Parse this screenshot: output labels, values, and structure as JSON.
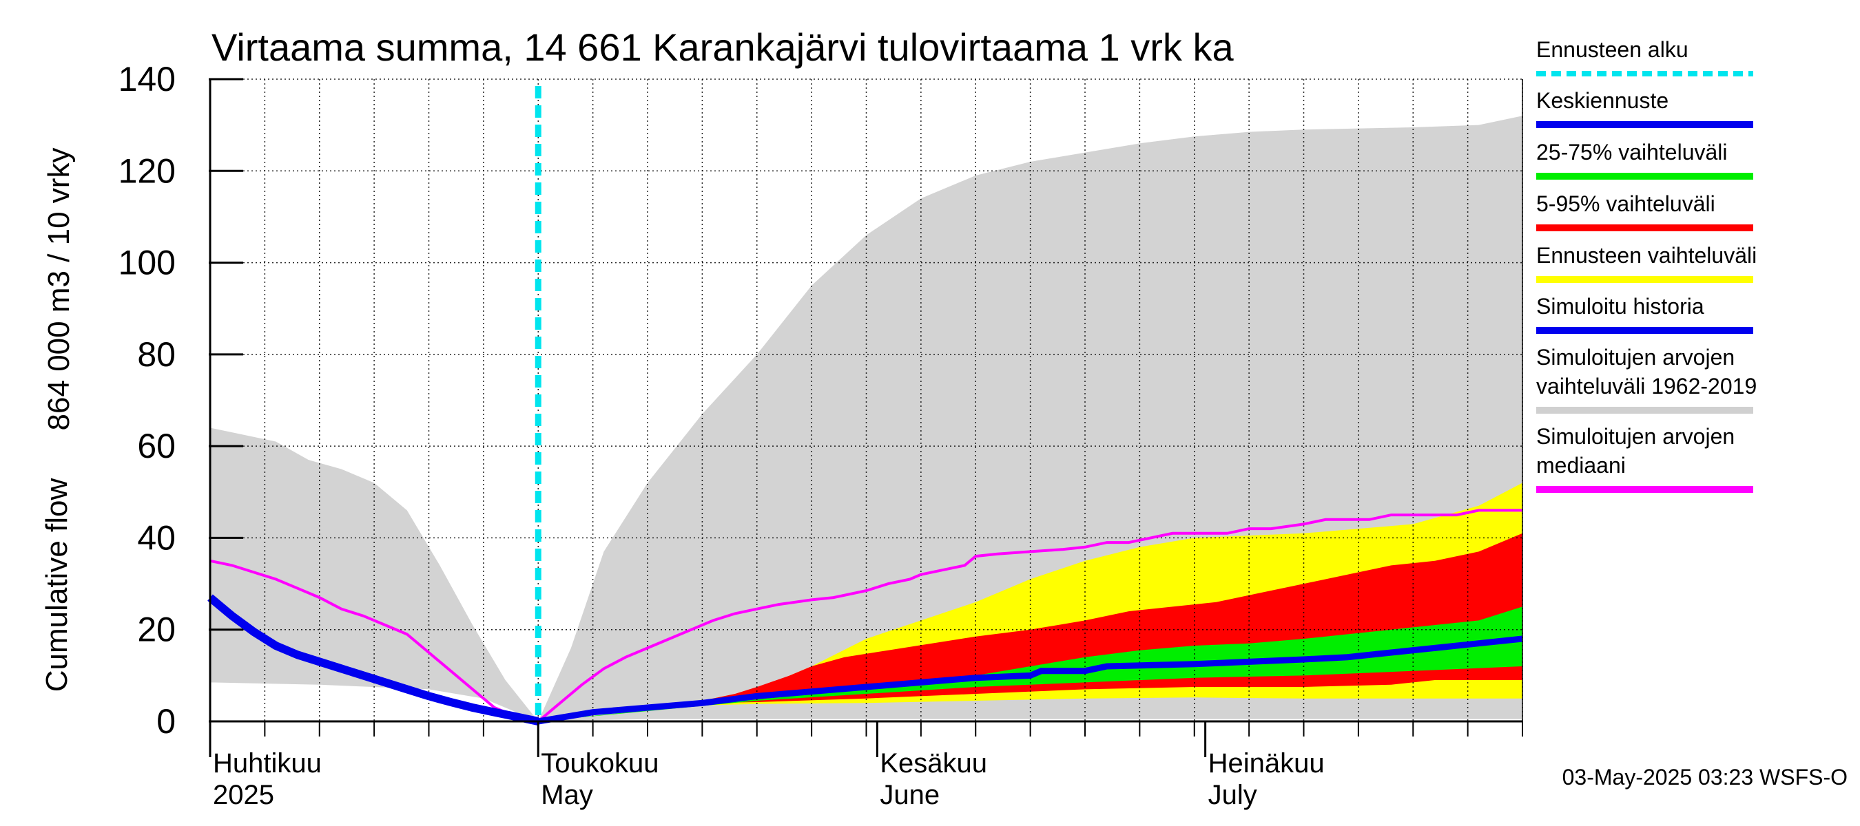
{
  "chart_data": {
    "type": "area",
    "title": "Virtaama summa, 14 661 Karankajärvi tulovirtaama 1 vrk ka",
    "ylabel_line1": "864 000 m3 / 10 vrky",
    "ylabel_line2": "Cumulative flow",
    "ylim": [
      0,
      140
    ],
    "yticks": [
      0,
      20,
      40,
      60,
      80,
      100,
      120,
      140
    ],
    "x_domain_days": [
      0,
      120
    ],
    "x_origin_date": "2025-03-29",
    "forecast_start_day": 30,
    "months": [
      {
        "day": 0,
        "fi": "Huhtikuu",
        "en": "2025"
      },
      {
        "day": 30,
        "fi": "Toukokuu",
        "en": "May"
      },
      {
        "day": 61,
        "fi": "Kesäkuu",
        "en": "June"
      },
      {
        "day": 91,
        "fi": "Heinäkuu",
        "en": "July"
      }
    ],
    "legend": [
      {
        "label": "Ennusteen alku",
        "color": "#00e5ee",
        "style": "dashed"
      },
      {
        "label": "Keskiennuste",
        "color": "#0000ee",
        "style": "solid"
      },
      {
        "label": "25-75% vaihteluväli",
        "color": "#00ee00",
        "style": "solid"
      },
      {
        "label": "5-95% vaihteluväli",
        "color": "#ff0000",
        "style": "solid"
      },
      {
        "label": "Ennusteen vaihteluväli",
        "color": "#ffff00",
        "style": "solid"
      },
      {
        "label": "Simuloitu historia",
        "color": "#0000ee",
        "style": "solid"
      },
      {
        "label": "Simuloitujen arvojen\nvaihteluväli 1962-2019",
        "color": "#d0d0d0",
        "style": "solid"
      },
      {
        "label": "Simuloitujen arvojen\nmediaani",
        "color": "#ff00ff",
        "style": "solid"
      }
    ],
    "series": {
      "hist_range_upper": [
        [
          0,
          64
        ],
        [
          2,
          63
        ],
        [
          6,
          61
        ],
        [
          9,
          57
        ],
        [
          12,
          55
        ],
        [
          15,
          52
        ],
        [
          18,
          46
        ],
        [
          21,
          34
        ],
        [
          24,
          21
        ],
        [
          27,
          9
        ],
        [
          30,
          0
        ],
        [
          33,
          16
        ],
        [
          36,
          37
        ],
        [
          40,
          52
        ],
        [
          45,
          67
        ],
        [
          50,
          80
        ],
        [
          55,
          95
        ],
        [
          60,
          106
        ],
        [
          65,
          114
        ],
        [
          70,
          119
        ],
        [
          75,
          122
        ],
        [
          80,
          124
        ],
        [
          85,
          126
        ],
        [
          90,
          127.5
        ],
        [
          95,
          128.5
        ],
        [
          100,
          129
        ],
        [
          110,
          129.5
        ],
        [
          116,
          130
        ],
        [
          120,
          132
        ]
      ],
      "hist_range_lower": [
        [
          0,
          8.5
        ],
        [
          10,
          8
        ],
        [
          20,
          7
        ],
        [
          25,
          5
        ],
        [
          30,
          0
        ],
        [
          33,
          0.2
        ],
        [
          40,
          0.5
        ],
        [
          50,
          0.5
        ],
        [
          60,
          0.5
        ],
        [
          120,
          0.5
        ]
      ],
      "ens_upper": [
        [
          30,
          0
        ],
        [
          40,
          3
        ],
        [
          45,
          4.5
        ],
        [
          50,
          7
        ],
        [
          55,
          12
        ],
        [
          60,
          18
        ],
        [
          65,
          22
        ],
        [
          70,
          26
        ],
        [
          75,
          31
        ],
        [
          80,
          35
        ],
        [
          85,
          38
        ],
        [
          90,
          40
        ],
        [
          100,
          41
        ],
        [
          110,
          43
        ],
        [
          116,
          47
        ],
        [
          120,
          52
        ]
      ],
      "ens_lower": [
        [
          30,
          0
        ],
        [
          40,
          3
        ],
        [
          45,
          3.5
        ],
        [
          50,
          3.8
        ],
        [
          60,
          4
        ],
        [
          70,
          4.5
        ],
        [
          80,
          5
        ],
        [
          90,
          5.2
        ],
        [
          100,
          5
        ],
        [
          110,
          5
        ],
        [
          120,
          5
        ]
      ],
      "p95": [
        [
          30,
          0
        ],
        [
          45,
          4.5
        ],
        [
          48,
          6
        ],
        [
          50,
          7.5
        ],
        [
          53,
          10
        ],
        [
          55,
          12
        ],
        [
          58,
          14
        ],
        [
          62,
          15.5
        ],
        [
          66,
          17
        ],
        [
          70,
          18.5
        ],
        [
          75,
          20
        ],
        [
          80,
          22
        ],
        [
          84,
          24
        ],
        [
          88,
          25
        ],
        [
          92,
          26
        ],
        [
          96,
          28
        ],
        [
          100,
          30
        ],
        [
          104,
          32
        ],
        [
          108,
          34
        ],
        [
          112,
          35
        ],
        [
          116,
          37
        ],
        [
          120,
          41
        ]
      ],
      "p5": [
        [
          30,
          0
        ],
        [
          45,
          4
        ],
        [
          50,
          4.2
        ],
        [
          60,
          5
        ],
        [
          70,
          6
        ],
        [
          80,
          7
        ],
        [
          90,
          7.5
        ],
        [
          100,
          7.5
        ],
        [
          108,
          8
        ],
        [
          112,
          9
        ],
        [
          120,
          9
        ]
      ],
      "p75": [
        [
          30,
          0
        ],
        [
          50,
          4.8
        ],
        [
          60,
          7
        ],
        [
          65,
          8
        ],
        [
          70,
          10
        ],
        [
          75,
          12
        ],
        [
          80,
          14
        ],
        [
          85,
          15.5
        ],
        [
          90,
          16.5
        ],
        [
          95,
          17
        ],
        [
          100,
          18
        ],
        [
          104,
          19
        ],
        [
          108,
          20
        ],
        [
          112,
          21
        ],
        [
          116,
          22
        ],
        [
          120,
          25
        ]
      ],
      "p25": [
        [
          30,
          0
        ],
        [
          50,
          4.5
        ],
        [
          60,
          6
        ],
        [
          70,
          7.5
        ],
        [
          80,
          8.5
        ],
        [
          90,
          9.5
        ],
        [
          100,
          10
        ],
        [
          110,
          11
        ],
        [
          120,
          12
        ]
      ],
      "median_forecast": [
        [
          30,
          0
        ],
        [
          35,
          2
        ],
        [
          40,
          3
        ],
        [
          45,
          4
        ],
        [
          50,
          5.5
        ],
        [
          55,
          6.5
        ],
        [
          60,
          7.5
        ],
        [
          65,
          8.5
        ],
        [
          70,
          9.5
        ],
        [
          75,
          10
        ],
        [
          76,
          11
        ],
        [
          80,
          11
        ],
        [
          82,
          12
        ],
        [
          90,
          12.5
        ],
        [
          95,
          13
        ],
        [
          100,
          13.5
        ],
        [
          104,
          14
        ],
        [
          108,
          15
        ],
        [
          112,
          16
        ],
        [
          116,
          17
        ],
        [
          120,
          18
        ]
      ],
      "simulated_history": [
        [
          0,
          27
        ],
        [
          2,
          23
        ],
        [
          4,
          19.5
        ],
        [
          6,
          16.5
        ],
        [
          8,
          14.5
        ],
        [
          10,
          13
        ],
        [
          12,
          11.5
        ],
        [
          14,
          10
        ],
        [
          16,
          8.5
        ],
        [
          18,
          7
        ],
        [
          20,
          5.5
        ],
        [
          22,
          4.2
        ],
        [
          24,
          3
        ],
        [
          26,
          2
        ],
        [
          28,
          1
        ],
        [
          30,
          0
        ]
      ],
      "hist_median": [
        [
          0,
          35
        ],
        [
          1,
          34.5
        ],
        [
          2,
          34
        ],
        [
          4,
          32.5
        ],
        [
          6,
          31
        ],
        [
          8,
          29
        ],
        [
          10,
          27
        ],
        [
          12,
          24.5
        ],
        [
          14,
          23
        ],
        [
          16,
          21
        ],
        [
          18,
          19
        ],
        [
          20,
          15
        ],
        [
          22,
          11
        ],
        [
          24,
          7
        ],
        [
          26,
          3
        ],
        [
          28,
          1
        ],
        [
          30,
          0
        ],
        [
          32,
          4
        ],
        [
          34,
          8
        ],
        [
          36,
          11.5
        ],
        [
          38,
          14
        ],
        [
          40,
          16
        ],
        [
          42,
          18
        ],
        [
          44,
          20
        ],
        [
          46,
          22
        ],
        [
          48,
          23.5
        ],
        [
          50,
          24.5
        ],
        [
          52,
          25.5
        ],
        [
          55,
          26.5
        ],
        [
          57,
          27
        ],
        [
          60,
          28.5
        ],
        [
          62,
          30
        ],
        [
          64,
          31
        ],
        [
          65,
          32
        ],
        [
          67,
          33
        ],
        [
          69,
          34
        ],
        [
          70,
          36
        ],
        [
          72,
          36.5
        ],
        [
          75,
          37
        ],
        [
          78,
          37.5
        ],
        [
          80,
          38
        ],
        [
          82,
          39
        ],
        [
          84,
          39
        ],
        [
          86,
          40
        ],
        [
          88,
          41
        ],
        [
          90,
          41
        ],
        [
          93,
          41
        ],
        [
          95,
          42
        ],
        [
          97,
          42
        ],
        [
          100,
          43
        ],
        [
          102,
          44
        ],
        [
          104,
          44
        ],
        [
          106,
          44
        ],
        [
          108,
          45
        ],
        [
          110,
          45
        ],
        [
          112,
          45
        ],
        [
          114,
          45
        ],
        [
          116,
          46
        ],
        [
          120,
          46
        ]
      ]
    },
    "footer": "03-May-2025 03:23 WSFS-O"
  }
}
